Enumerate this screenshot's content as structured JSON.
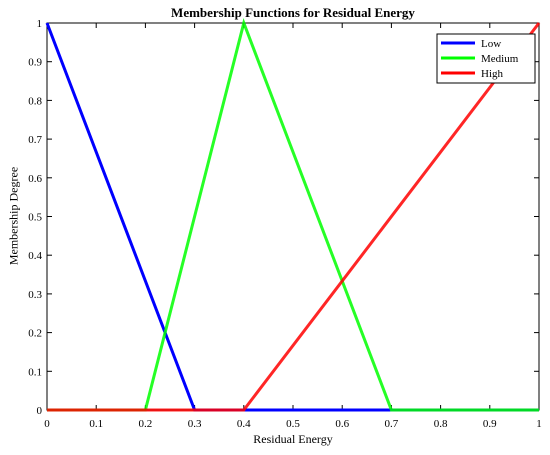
{
  "chart_data": {
    "type": "line",
    "title": "Membership Functions for Residual Energy",
    "xlabel": "Residual Energy",
    "ylabel": "Membership Degree",
    "xlim": [
      0,
      1
    ],
    "ylim": [
      0,
      1
    ],
    "xticks": [
      "0",
      "0.1",
      "0.2",
      "0.3",
      "0.4",
      "0.5",
      "0.6",
      "0.7",
      "0.8",
      "0.9",
      "1"
    ],
    "yticks": [
      "0",
      "0.1",
      "0.2",
      "0.3",
      "0.4",
      "0.5",
      "0.6",
      "0.7",
      "0.8",
      "0.9",
      "1"
    ],
    "grid": false,
    "legend_position": "top-right",
    "series": [
      {
        "name": "Low",
        "color": "#0000ff",
        "x": [
          0,
          0.3,
          1
        ],
        "y": [
          1,
          0,
          0
        ]
      },
      {
        "name": "Medium",
        "color": "#00ff00",
        "x": [
          0,
          0.2,
          0.4,
          0.7,
          1
        ],
        "y": [
          0,
          0,
          1,
          0,
          0
        ]
      },
      {
        "name": "High",
        "color": "#ff0000",
        "x": [
          0,
          0.4,
          1
        ],
        "y": [
          0,
          0,
          1
        ]
      }
    ]
  }
}
